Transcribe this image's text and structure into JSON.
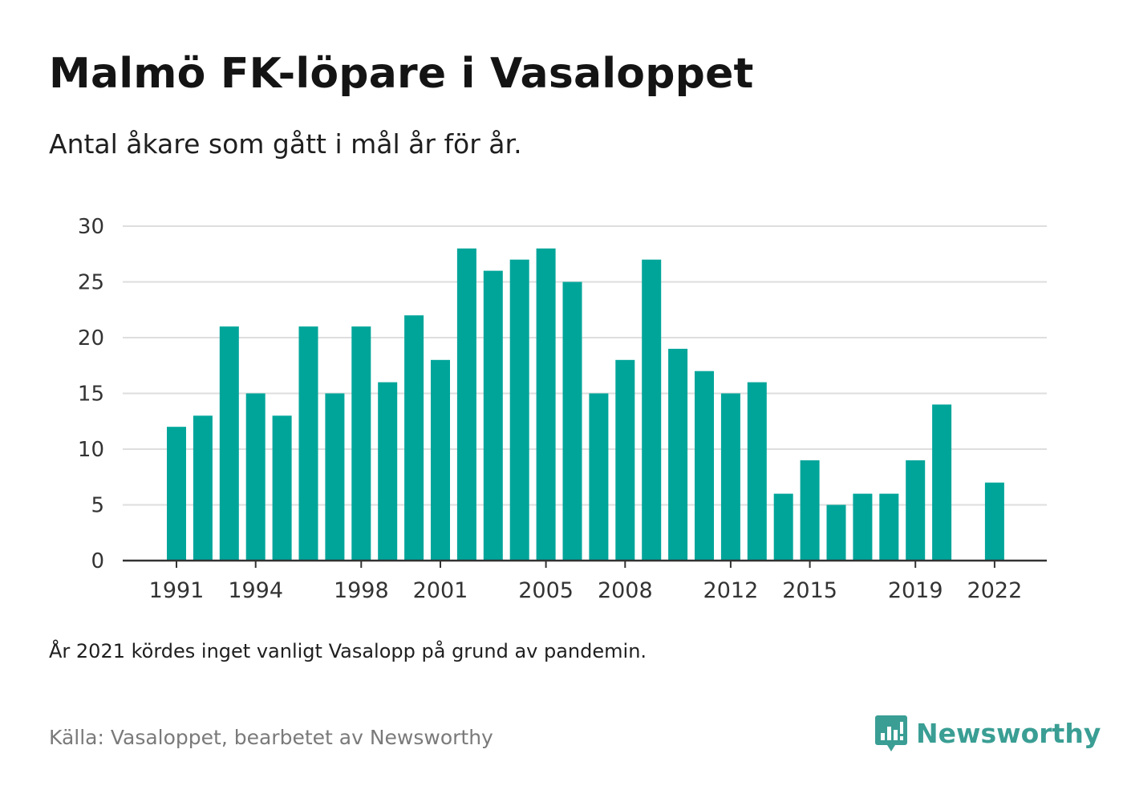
{
  "header": {
    "title": "Malmö FK-löpare i Vasaloppet",
    "subtitle": "Antal åkare som gått i mål år för år."
  },
  "footer": {
    "note": "År 2021 kördes inget vanligt Vasalopp på grund av pandemin.",
    "source": "Källa: Vasaloppet, bearbetet av Newsworthy",
    "brand": "Newsworthy",
    "logo_icon": "newsworthy-logo-icon"
  },
  "colors": {
    "bar": "#00a59a",
    "grid": "#dedede",
    "axis": "#333333",
    "brand": "#3a9e94"
  },
  "chart_data": {
    "type": "bar",
    "title": "Malmö FK-löpare i Vasaloppet",
    "subtitle": "Antal åkare som gått i mål år för år.",
    "xlabel": "",
    "ylabel": "",
    "categories": [
      1991,
      1992,
      1993,
      1994,
      1995,
      1996,
      1997,
      1998,
      1999,
      2000,
      2001,
      2002,
      2003,
      2004,
      2005,
      2006,
      2007,
      2008,
      2009,
      2010,
      2011,
      2012,
      2013,
      2014,
      2015,
      2016,
      2017,
      2018,
      2019,
      2020,
      2021,
      2022
    ],
    "values": [
      12,
      13,
      21,
      15,
      13,
      21,
      15,
      21,
      16,
      22,
      18,
      28,
      26,
      27,
      28,
      25,
      15,
      18,
      27,
      19,
      17,
      15,
      16,
      6,
      9,
      5,
      6,
      6,
      9,
      14,
      null,
      7
    ],
    "xticks": [
      "1991",
      "1994",
      "1998",
      "2001",
      "2005",
      "2008",
      "2012",
      "2015",
      "2019",
      "2022"
    ],
    "yticks": [
      "0",
      "5",
      "10",
      "15",
      "20",
      "25",
      "30"
    ],
    "ylim": [
      0,
      30
    ],
    "grid": true,
    "legend": "none"
  }
}
